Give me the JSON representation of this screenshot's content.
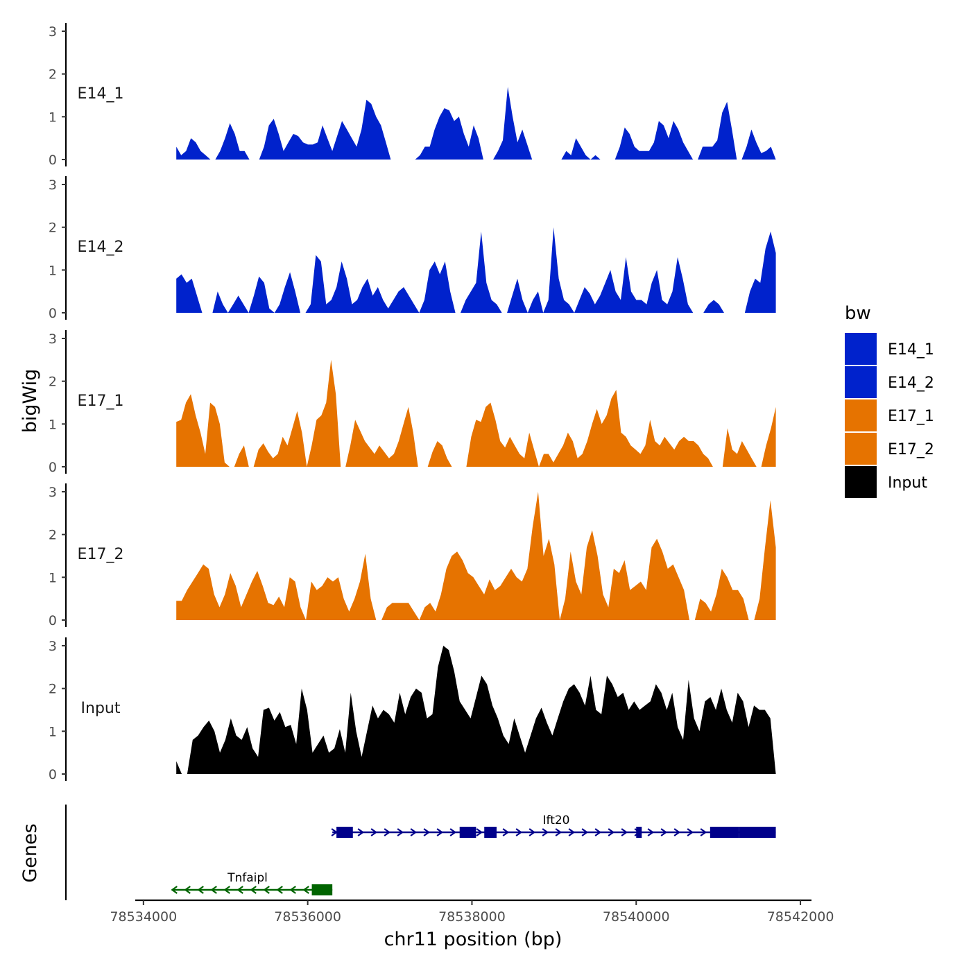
{
  "chart_data": {
    "type": "area",
    "title": "",
    "xlabel": "chr11 position (bp)",
    "ylabel": "bigWig",
    "genes_label": "Genes",
    "xlim": [
      78533900,
      78542050
    ],
    "ylim": [
      0,
      3.2
    ],
    "x_ticks": [
      78534000,
      78536000,
      78538000,
      78540000,
      78542000
    ],
    "y_ticks": [
      0,
      1,
      2,
      3
    ],
    "bin_start": 78534400,
    "bin_end": 78541700,
    "legend": {
      "title": "bw",
      "entries": [
        {
          "label": "E14_1",
          "color": "#0022cc"
        },
        {
          "label": "E14_2",
          "color": "#0022cc"
        },
        {
          "label": "E17_1",
          "color": "#e67300"
        },
        {
          "label": "E17_2",
          "color": "#e67300"
        },
        {
          "label": "Input",
          "color": "#000000"
        }
      ]
    },
    "series": [
      {
        "name": "E14_1",
        "color": "#0022cc",
        "values": [
          0.3,
          0.1,
          0.2,
          0.5,
          0.4,
          0.2,
          0.1,
          0,
          0,
          0.2,
          0.5,
          0.85,
          0.6,
          0.2,
          0.2,
          0,
          0,
          0,
          0.3,
          0.8,
          0.95,
          0.6,
          0.2,
          0.4,
          0.6,
          0.55,
          0.4,
          0.35,
          0.35,
          0.4,
          0.8,
          0.5,
          0.2,
          0.55,
          0.9,
          0.7,
          0.5,
          0.3,
          0.7,
          1.4,
          1.3,
          1.0,
          0.8,
          0.4,
          0,
          0,
          0,
          0,
          0,
          0,
          0.1,
          0.3,
          0.3,
          0.7,
          1.0,
          1.2,
          1.15,
          0.9,
          1.0,
          0.6,
          0.3,
          0.8,
          0.5,
          0,
          0,
          0,
          0.2,
          0.45,
          1.7,
          1.0,
          0.4,
          0.7,
          0.35,
          0,
          0,
          0,
          0,
          0,
          0,
          0,
          0.2,
          0.1,
          0.5,
          0.3,
          0.1,
          0,
          0.1,
          0,
          0,
          0,
          0,
          0.3,
          0.75,
          0.6,
          0.3,
          0.2,
          0.2,
          0.2,
          0.4,
          0.9,
          0.8,
          0.5,
          0.9,
          0.7,
          0.4,
          0.2,
          0,
          0,
          0.3,
          0.3,
          0.3,
          0.45,
          1.1,
          1.35,
          0.7,
          0,
          0,
          0.3,
          0.7,
          0.4,
          0.15,
          0.2,
          0.3,
          0
        ]
      },
      {
        "name": "E14_2",
        "color": "#0022cc",
        "values": [
          0.8,
          0.9,
          0.7,
          0.8,
          0.4,
          0,
          0,
          0,
          0.5,
          0.2,
          0,
          0.2,
          0.4,
          0.2,
          0,
          0.4,
          0.85,
          0.7,
          0.1,
          0,
          0.2,
          0.6,
          0.95,
          0.5,
          0,
          0,
          0.2,
          1.35,
          1.2,
          0.2,
          0.3,
          0.6,
          1.2,
          0.8,
          0.2,
          0.3,
          0.6,
          0.8,
          0.4,
          0.6,
          0.3,
          0.1,
          0.3,
          0.5,
          0.6,
          0.4,
          0.2,
          0,
          0.3,
          1.0,
          1.2,
          0.9,
          1.2,
          0.5,
          0,
          0,
          0.3,
          0.5,
          0.7,
          1.9,
          0.7,
          0.3,
          0.2,
          0,
          0,
          0.4,
          0.8,
          0.3,
          0,
          0.3,
          0.5,
          0,
          0.3,
          2.0,
          0.8,
          0.3,
          0.2,
          0,
          0.3,
          0.6,
          0.45,
          0.2,
          0.4,
          0.7,
          1.0,
          0.5,
          0.3,
          1.3,
          0.5,
          0.3,
          0.3,
          0.2,
          0.7,
          1.0,
          0.3,
          0.2,
          0.5,
          1.3,
          0.8,
          0.2,
          0,
          0,
          0,
          0.2,
          0.3,
          0.2,
          0,
          0,
          0,
          0,
          0,
          0.5,
          0.8,
          0.7,
          1.5,
          1.9,
          1.4
        ]
      },
      {
        "name": "E17_1",
        "color": "#e67300",
        "values": [
          1.05,
          1.1,
          1.5,
          1.7,
          1.2,
          0.8,
          0.3,
          1.5,
          1.4,
          1.0,
          0.1,
          0,
          0,
          0.3,
          0.5,
          0,
          0,
          0.4,
          0.55,
          0.35,
          0.2,
          0.3,
          0.7,
          0.5,
          0.9,
          1.3,
          0.8,
          0,
          0.5,
          1.1,
          1.2,
          1.5,
          2.5,
          1.7,
          0,
          0,
          0.5,
          1.1,
          0.85,
          0.6,
          0.45,
          0.3,
          0.5,
          0.35,
          0.2,
          0.3,
          0.6,
          1.0,
          1.4,
          0.8,
          0,
          0,
          0,
          0.35,
          0.6,
          0.5,
          0.2,
          0,
          0,
          0,
          0,
          0.7,
          1.1,
          1.05,
          1.4,
          1.5,
          1.1,
          0.6,
          0.45,
          0.7,
          0.5,
          0.3,
          0.2,
          0.8,
          0.4,
          0,
          0.3,
          0.3,
          0.1,
          0.3,
          0.5,
          0.8,
          0.6,
          0.2,
          0.3,
          0.6,
          1.0,
          1.35,
          1.0,
          1.2,
          1.6,
          1.8,
          0.8,
          0.7,
          0.5,
          0.4,
          0.3,
          0.5,
          1.1,
          0.6,
          0.5,
          0.7,
          0.55,
          0.4,
          0.6,
          0.7,
          0.6,
          0.6,
          0.5,
          0.3,
          0.2,
          0,
          0,
          0,
          0.9,
          0.4,
          0.3,
          0.6,
          0.4,
          0.2,
          0,
          0,
          0.5,
          0.9,
          1.4
        ]
      },
      {
        "name": "E17_2",
        "color": "#e67300",
        "values": [
          0.45,
          0.45,
          0.7,
          0.9,
          1.1,
          1.3,
          1.2,
          0.6,
          0.3,
          0.6,
          1.1,
          0.8,
          0.3,
          0.6,
          0.9,
          1.15,
          0.8,
          0.4,
          0.35,
          0.55,
          0.3,
          1.0,
          0.9,
          0.3,
          0,
          0.9,
          0.7,
          0.8,
          1.0,
          0.9,
          1.0,
          0.5,
          0.2,
          0.5,
          0.9,
          1.55,
          0.5,
          0,
          0,
          0.3,
          0.4,
          0.4,
          0.4,
          0.4,
          0.2,
          0,
          0.3,
          0.4,
          0.2,
          0.6,
          1.2,
          1.5,
          1.6,
          1.4,
          1.1,
          1.0,
          0.8,
          0.6,
          0.95,
          0.7,
          0.8,
          1.0,
          1.2,
          1.0,
          0.9,
          1.2,
          2.2,
          3.0,
          1.5,
          1.9,
          1.3,
          0,
          0.5,
          1.6,
          0.9,
          0.6,
          1.7,
          2.1,
          1.5,
          0.6,
          0.3,
          1.2,
          1.1,
          1.4,
          0.7,
          0.8,
          0.9,
          0.7,
          1.7,
          1.9,
          1.6,
          1.2,
          1.3,
          1.0,
          0.7,
          0,
          0,
          0.5,
          0.4,
          0.2,
          0.6,
          1.2,
          1.0,
          0.7,
          0.7,
          0.5,
          0,
          0,
          0.5,
          1.7,
          2.8,
          1.7
        ]
      },
      {
        "name": "Input",
        "color": "#000000",
        "values": [
          0.3,
          0,
          0,
          0.8,
          0.9,
          1.1,
          1.25,
          1.0,
          0.5,
          0.8,
          1.3,
          0.9,
          0.8,
          1.1,
          0.6,
          0.4,
          1.5,
          1.55,
          1.25,
          1.45,
          1.1,
          1.15,
          0.7,
          2.0,
          1.5,
          0.5,
          0.7,
          0.9,
          0.5,
          0.6,
          1.05,
          0.5,
          1.9,
          1.0,
          0.4,
          1.0,
          1.6,
          1.3,
          1.5,
          1.4,
          1.2,
          1.9,
          1.4,
          1.8,
          2.0,
          1.9,
          1.3,
          1.4,
          2.5,
          3.0,
          2.9,
          2.4,
          1.7,
          1.5,
          1.3,
          1.8,
          2.3,
          2.1,
          1.6,
          1.3,
          0.9,
          0.7,
          1.3,
          0.9,
          0.5,
          0.9,
          1.3,
          1.55,
          1.2,
          0.9,
          1.3,
          1.7,
          2.0,
          2.1,
          1.9,
          1.6,
          2.3,
          1.5,
          1.4,
          2.3,
          2.1,
          1.8,
          1.9,
          1.5,
          1.7,
          1.5,
          1.6,
          1.7,
          2.1,
          1.9,
          1.5,
          1.9,
          1.1,
          0.8,
          2.2,
          1.3,
          1.0,
          1.7,
          1.8,
          1.5,
          2.0,
          1.5,
          1.2,
          1.9,
          1.7,
          1.1,
          1.6,
          1.5,
          1.5,
          1.3,
          0
        ]
      }
    ],
    "genes": [
      {
        "name": "Ift20",
        "strand": "+",
        "start": 78536300,
        "end": 78541700,
        "color": "#00008b",
        "exons": [
          [
            78536350,
            78536550
          ],
          [
            78537850,
            78538050
          ],
          [
            78538150,
            78538300
          ],
          [
            78540000,
            78540050
          ],
          [
            78540900,
            78541250
          ],
          [
            78541250,
            78541700
          ]
        ]
      },
      {
        "name": "Tnfaipl",
        "strand": "-",
        "start": 78534350,
        "end": 78536300,
        "color": "#006400",
        "exons": [
          [
            78536050,
            78536300
          ]
        ]
      }
    ]
  }
}
